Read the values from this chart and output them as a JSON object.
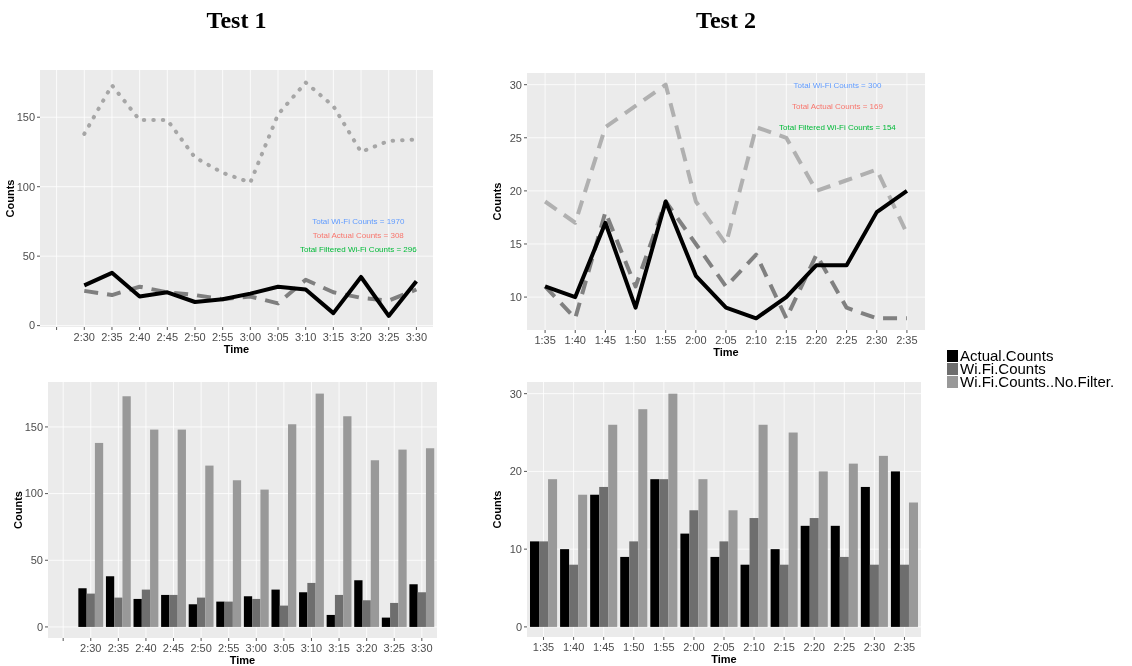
{
  "chart_data": [
    {
      "type": "line",
      "title": "Test 1",
      "xlabel": "Time",
      "ylabel": "Counts",
      "categories": [
        null,
        "2:30",
        "2:35",
        "2:40",
        "2:45",
        "2:50",
        "2:55",
        "3:00",
        "3:05",
        "3:10",
        "3:15",
        "3:20",
        "3:25",
        "3:30"
      ],
      "series": [
        {
          "color": "#a6a6a6",
          "line_style": "dotted",
          "values": [
            null,
            138,
            173,
            148,
            148,
            121,
            110,
            103,
            152,
            175,
            158,
            125,
            133,
            134
          ]
        },
        {
          "color": "#7f7f7f",
          "line_style": "dashed",
          "values": [
            null,
            25,
            22,
            28,
            24,
            22,
            19,
            21,
            16,
            33,
            24,
            20,
            18,
            26
          ]
        },
        {
          "color": "#000000",
          "line_style": "solid",
          "values": [
            null,
            29,
            38,
            21,
            24,
            17,
            19,
            23,
            28,
            26,
            9,
            35,
            7,
            32
          ]
        }
      ],
      "ylim": [
        -1,
        184
      ],
      "yticks": [
        0,
        50,
        100,
        150
      ],
      "grid": true,
      "annotations": [
        "Total Wi-Fi Counts = 1970",
        "Total Actual Counts = 308",
        "Total Filtered Wi-Fi Counts = 296"
      ]
    },
    {
      "type": "line",
      "title": "Test 2",
      "xlabel": "Time",
      "ylabel": "Counts",
      "categories": [
        "1:35",
        "1:40",
        "1:45",
        "1:50",
        "1:55",
        "2:00",
        "2:05",
        "2:10",
        "2:15",
        "2:20",
        "2:25",
        "2:30",
        "2:35"
      ],
      "series": [
        {
          "color": "#b0b0b0",
          "line_style": "dashed",
          "values": [
            19,
            17,
            26,
            28,
            30,
            19,
            15,
            26,
            25,
            20,
            21,
            22,
            16
          ]
        },
        {
          "color": "#808080",
          "line_style": "dashed",
          "values": [
            11,
            8,
            18,
            11,
            19,
            15,
            11,
            14,
            8,
            14,
            9,
            8,
            8
          ]
        },
        {
          "color": "#000000",
          "line_style": "solid",
          "values": [
            11,
            10,
            17,
            9,
            19,
            12,
            9,
            8,
            10,
            13,
            13,
            18,
            20
          ]
        }
      ],
      "ylim": [
        6.9,
        31.1
      ],
      "yticks": [
        10,
        15,
        20,
        25,
        30
      ],
      "grid": true,
      "annotations": [
        "Total Wi-Fi Counts = 300",
        "Total Actual Counts = 169",
        "Total Filtered Wi-Fi Counts = 154"
      ]
    },
    {
      "type": "bar",
      "xlabel": "Time",
      "ylabel": "Counts",
      "categories": [
        null,
        "2:30",
        "2:35",
        "2:40",
        "2:45",
        "2:50",
        "2:55",
        "3:00",
        "3:05",
        "3:10",
        "3:15",
        "3:20",
        "3:25",
        "3:30"
      ],
      "series": [
        {
          "color": "#000000",
          "values": [
            null,
            29,
            38,
            21,
            24,
            17,
            19,
            23,
            28,
            26,
            9,
            35,
            7,
            32
          ]
        },
        {
          "color": "#6e6e6e",
          "values": [
            null,
            25,
            22,
            28,
            24,
            22,
            19,
            21,
            16,
            33,
            24,
            20,
            18,
            26
          ]
        },
        {
          "color": "#999999",
          "values": [
            null,
            138,
            173,
            148,
            148,
            121,
            110,
            103,
            152,
            175,
            158,
            125,
            133,
            134
          ]
        }
      ],
      "ylim": [
        -8.3,
        183.7
      ],
      "yticks": [
        0,
        50,
        100,
        150
      ],
      "grid": true
    },
    {
      "type": "bar",
      "xlabel": "Time",
      "ylabel": "Counts",
      "categories": [
        "1:35",
        "1:40",
        "1:45",
        "1:50",
        "1:55",
        "2:00",
        "2:05",
        "2:10",
        "2:15",
        "2:20",
        "2:25",
        "2:30",
        "2:35"
      ],
      "series": [
        {
          "name": "Actual.Counts",
          "color": "#000000",
          "values": [
            11,
            10,
            17,
            9,
            19,
            12,
            9,
            8,
            10,
            13,
            13,
            18,
            20
          ]
        },
        {
          "name": "Wi.Fi.Counts",
          "color": "#6e6e6e",
          "values": [
            11,
            8,
            18,
            11,
            19,
            15,
            11,
            14,
            8,
            14,
            9,
            8,
            8
          ]
        },
        {
          "name": "Wi.Fi.Counts..No.Filter.",
          "color": "#999999",
          "values": [
            19,
            17,
            26,
            28,
            30,
            19,
            15,
            26,
            25,
            20,
            21,
            22,
            16
          ]
        }
      ],
      "ylim": [
        -1.3,
        31.5
      ],
      "yticks": [
        0,
        10,
        20,
        30
      ],
      "grid": true,
      "legend": "right"
    }
  ]
}
